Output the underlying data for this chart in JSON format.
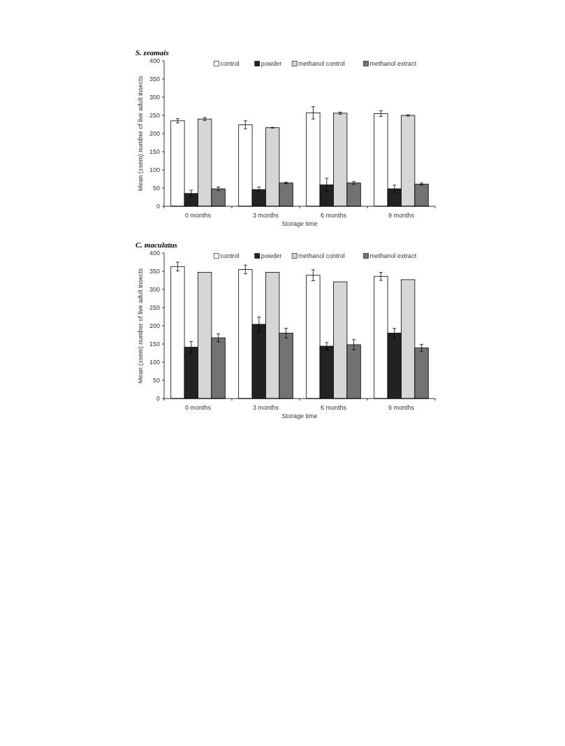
{
  "chart_data": [
    {
      "type": "bar",
      "title": "S. zeamais",
      "xlabel": "Storage time",
      "ylabel": "Mean (±sem) number of live adult insects",
      "categories": [
        "0 months",
        "3 months",
        "6 months",
        "9 months"
      ],
      "ylim": [
        0,
        400
      ],
      "yticks": [
        0,
        50,
        100,
        150,
        200,
        250,
        300,
        350,
        400
      ],
      "legend": "top right",
      "grid": false,
      "series": [
        {
          "name": "control",
          "color": "#ffffff",
          "values": [
            235,
            224,
            257,
            255
          ],
          "errors": [
            6,
            11,
            17,
            8
          ]
        },
        {
          "name": "powder",
          "color": "#222222",
          "values": [
            35,
            46,
            59,
            48
          ],
          "errors": [
            9,
            7,
            18,
            10
          ]
        },
        {
          "name": "methanol control",
          "color": "#d6d6d6",
          "values": [
            240,
            216,
            256,
            250
          ],
          "errors": [
            4,
            1,
            3,
            2
          ]
        },
        {
          "name": "methanol extract",
          "color": "#737373",
          "values": [
            48,
            64,
            64,
            61
          ],
          "errors": [
            5,
            2,
            4,
            3
          ]
        }
      ]
    },
    {
      "type": "bar",
      "title": "C. maculatus",
      "xlabel": "Storage time",
      "ylabel": "Mean (±sem) number of live adult insects",
      "categories": [
        "0 months",
        "3 months",
        "6 months",
        "9 months"
      ],
      "ylim": [
        0,
        400
      ],
      "yticks": [
        0,
        50,
        100,
        150,
        200,
        250,
        300,
        350,
        400
      ],
      "legend": "top right",
      "grid": false,
      "series": [
        {
          "name": "control",
          "color": "#ffffff",
          "values": [
            363,
            355,
            339,
            336
          ],
          "errors": [
            12,
            12,
            15,
            11
          ]
        },
        {
          "name": "powder",
          "color": "#222222",
          "values": [
            141,
            204,
            144,
            180
          ],
          "errors": [
            16,
            20,
            10,
            13
          ]
        },
        {
          "name": "methanol control",
          "color": "#d6d6d6",
          "values": [
            347,
            347,
            321,
            327
          ]
        },
        {
          "name": "methanol extract",
          "color": "#737373",
          "values": [
            167,
            180,
            148,
            139
          ],
          "errors": [
            11,
            13,
            14,
            10
          ]
        }
      ]
    }
  ]
}
